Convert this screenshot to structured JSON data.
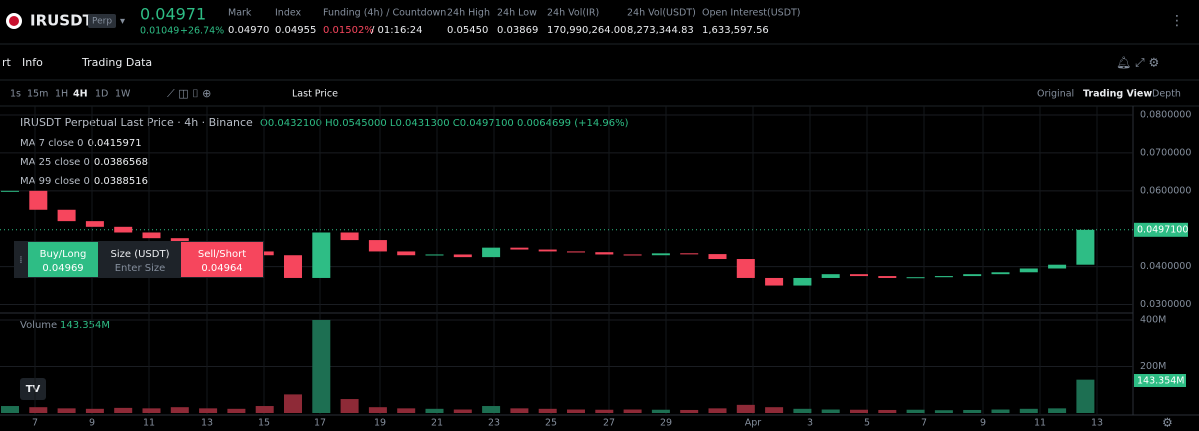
{
  "header": {
    "symbol": "IRUSDT",
    "badge": "Perp",
    "price": "0.04971",
    "change": "0.01049",
    "change_pct": "+26.74%",
    "stats": [
      {
        "label": "Mark",
        "value": "0.04970"
      },
      {
        "label": "Index",
        "value": "0.04955"
      },
      {
        "label": "Funding (4h) / Countdown",
        "value": "0.01502%",
        "extra": "/ 01:16:24"
      },
      {
        "label": "24h High",
        "value": "0.05450"
      },
      {
        "label": "24h Low",
        "value": "0.03869"
      },
      {
        "label": "24h Vol(IR)",
        "value": "170,990,264.00"
      },
      {
        "label": "24h Vol(USDT)",
        "value": "8,273,344.83"
      },
      {
        "label": "Open Interest(USDT)",
        "value": "1,633,597.56"
      }
    ]
  },
  "tabs": [
    "rt",
    "Info",
    "Trading Data"
  ],
  "intervals": [
    "1s",
    "15m",
    "1H",
    "4H",
    "1D",
    "1W"
  ],
  "price_type": "Last Price",
  "views": [
    "Original",
    "Trading View",
    "Depth"
  ],
  "chart": {
    "title": "IRUSDT Perpetual Last Price · 4h · Binance",
    "ohlc": "O0.0432100 H0.0545000 L0.0431300 C0.0497100 0.0064699 (+14.96%)",
    "ma": [
      {
        "label": "MA 7 close 0",
        "value": "0.0415971",
        "color": "#f0b90b"
      },
      {
        "label": "MA 25 close 0",
        "value": "0.0386568",
        "color": "#d05ce3"
      },
      {
        "label": "MA 99 close 0",
        "value": "0.0388516",
        "color": "#5ee0e8"
      }
    ],
    "closes": [
      0.06,
      0.055,
      0.052,
      0.0505,
      0.049,
      0.0475,
      0.046,
      0.045,
      0.044,
      0.043,
      0.037,
      0.049,
      0.047,
      0.044,
      0.043,
      0.0432,
      0.0425,
      0.045,
      0.0445,
      0.044,
      0.0438,
      0.0432,
      0.043,
      0.0435,
      0.0433,
      0.042,
      0.037,
      0.035,
      0.037,
      0.038,
      0.0375,
      0.037,
      0.0372,
      0.0375,
      0.038,
      0.0385,
      0.0395,
      0.0405,
      0.0497
    ],
    "price_ylim": [
      0.02828,
      0.08186
    ],
    "price_yticks": [
      {
        "value": 0.08,
        "label": "0.0800000"
      },
      {
        "value": 0.07,
        "label": "0.0700000"
      },
      {
        "value": 0.06,
        "label": "0.0600000"
      },
      {
        "value": 0.04,
        "label": "0.0400000"
      },
      {
        "value": 0.03,
        "label": "0.0300000"
      }
    ],
    "last_price": {
      "value": 0.04971,
      "label": "0.0497100"
    },
    "volume_label": "Volume",
    "volume_value": "143.354M",
    "volumes": [
      30000000,
      25000000,
      20000000,
      18000000,
      22000000,
      20000000,
      25000000,
      20000000,
      18000000,
      30000000,
      80000000,
      400000000,
      60000000,
      25000000,
      20000000,
      18000000,
      15000000,
      30000000,
      20000000,
      18000000,
      15000000,
      14000000,
      15000000,
      14000000,
      13000000,
      20000000,
      35000000,
      25000000,
      18000000,
      15000000,
      14000000,
      13000000,
      14000000,
      12000000,
      13000000,
      15000000,
      18000000,
      20000000,
      143354000
    ],
    "volume_ylim": [
      0,
      430000000
    ],
    "volume_yticks": [
      {
        "value": 400000000,
        "label": "400M"
      },
      {
        "value": 200000000,
        "label": "200M"
      }
    ],
    "x_labels": [
      "7",
      "9",
      "11",
      "13",
      "15",
      "17",
      "19",
      "21",
      "23",
      "25",
      "27",
      "29",
      "Apr",
      "3",
      "5",
      "7",
      "9",
      "11",
      "13"
    ]
  },
  "order": {
    "buy": "Buy/Long",
    "buy_price": "0.04969",
    "size": "Size (USDT)",
    "placeholder": "Enter Size",
    "sell": "Sell/Short",
    "sell_price": "0.04964"
  }
}
